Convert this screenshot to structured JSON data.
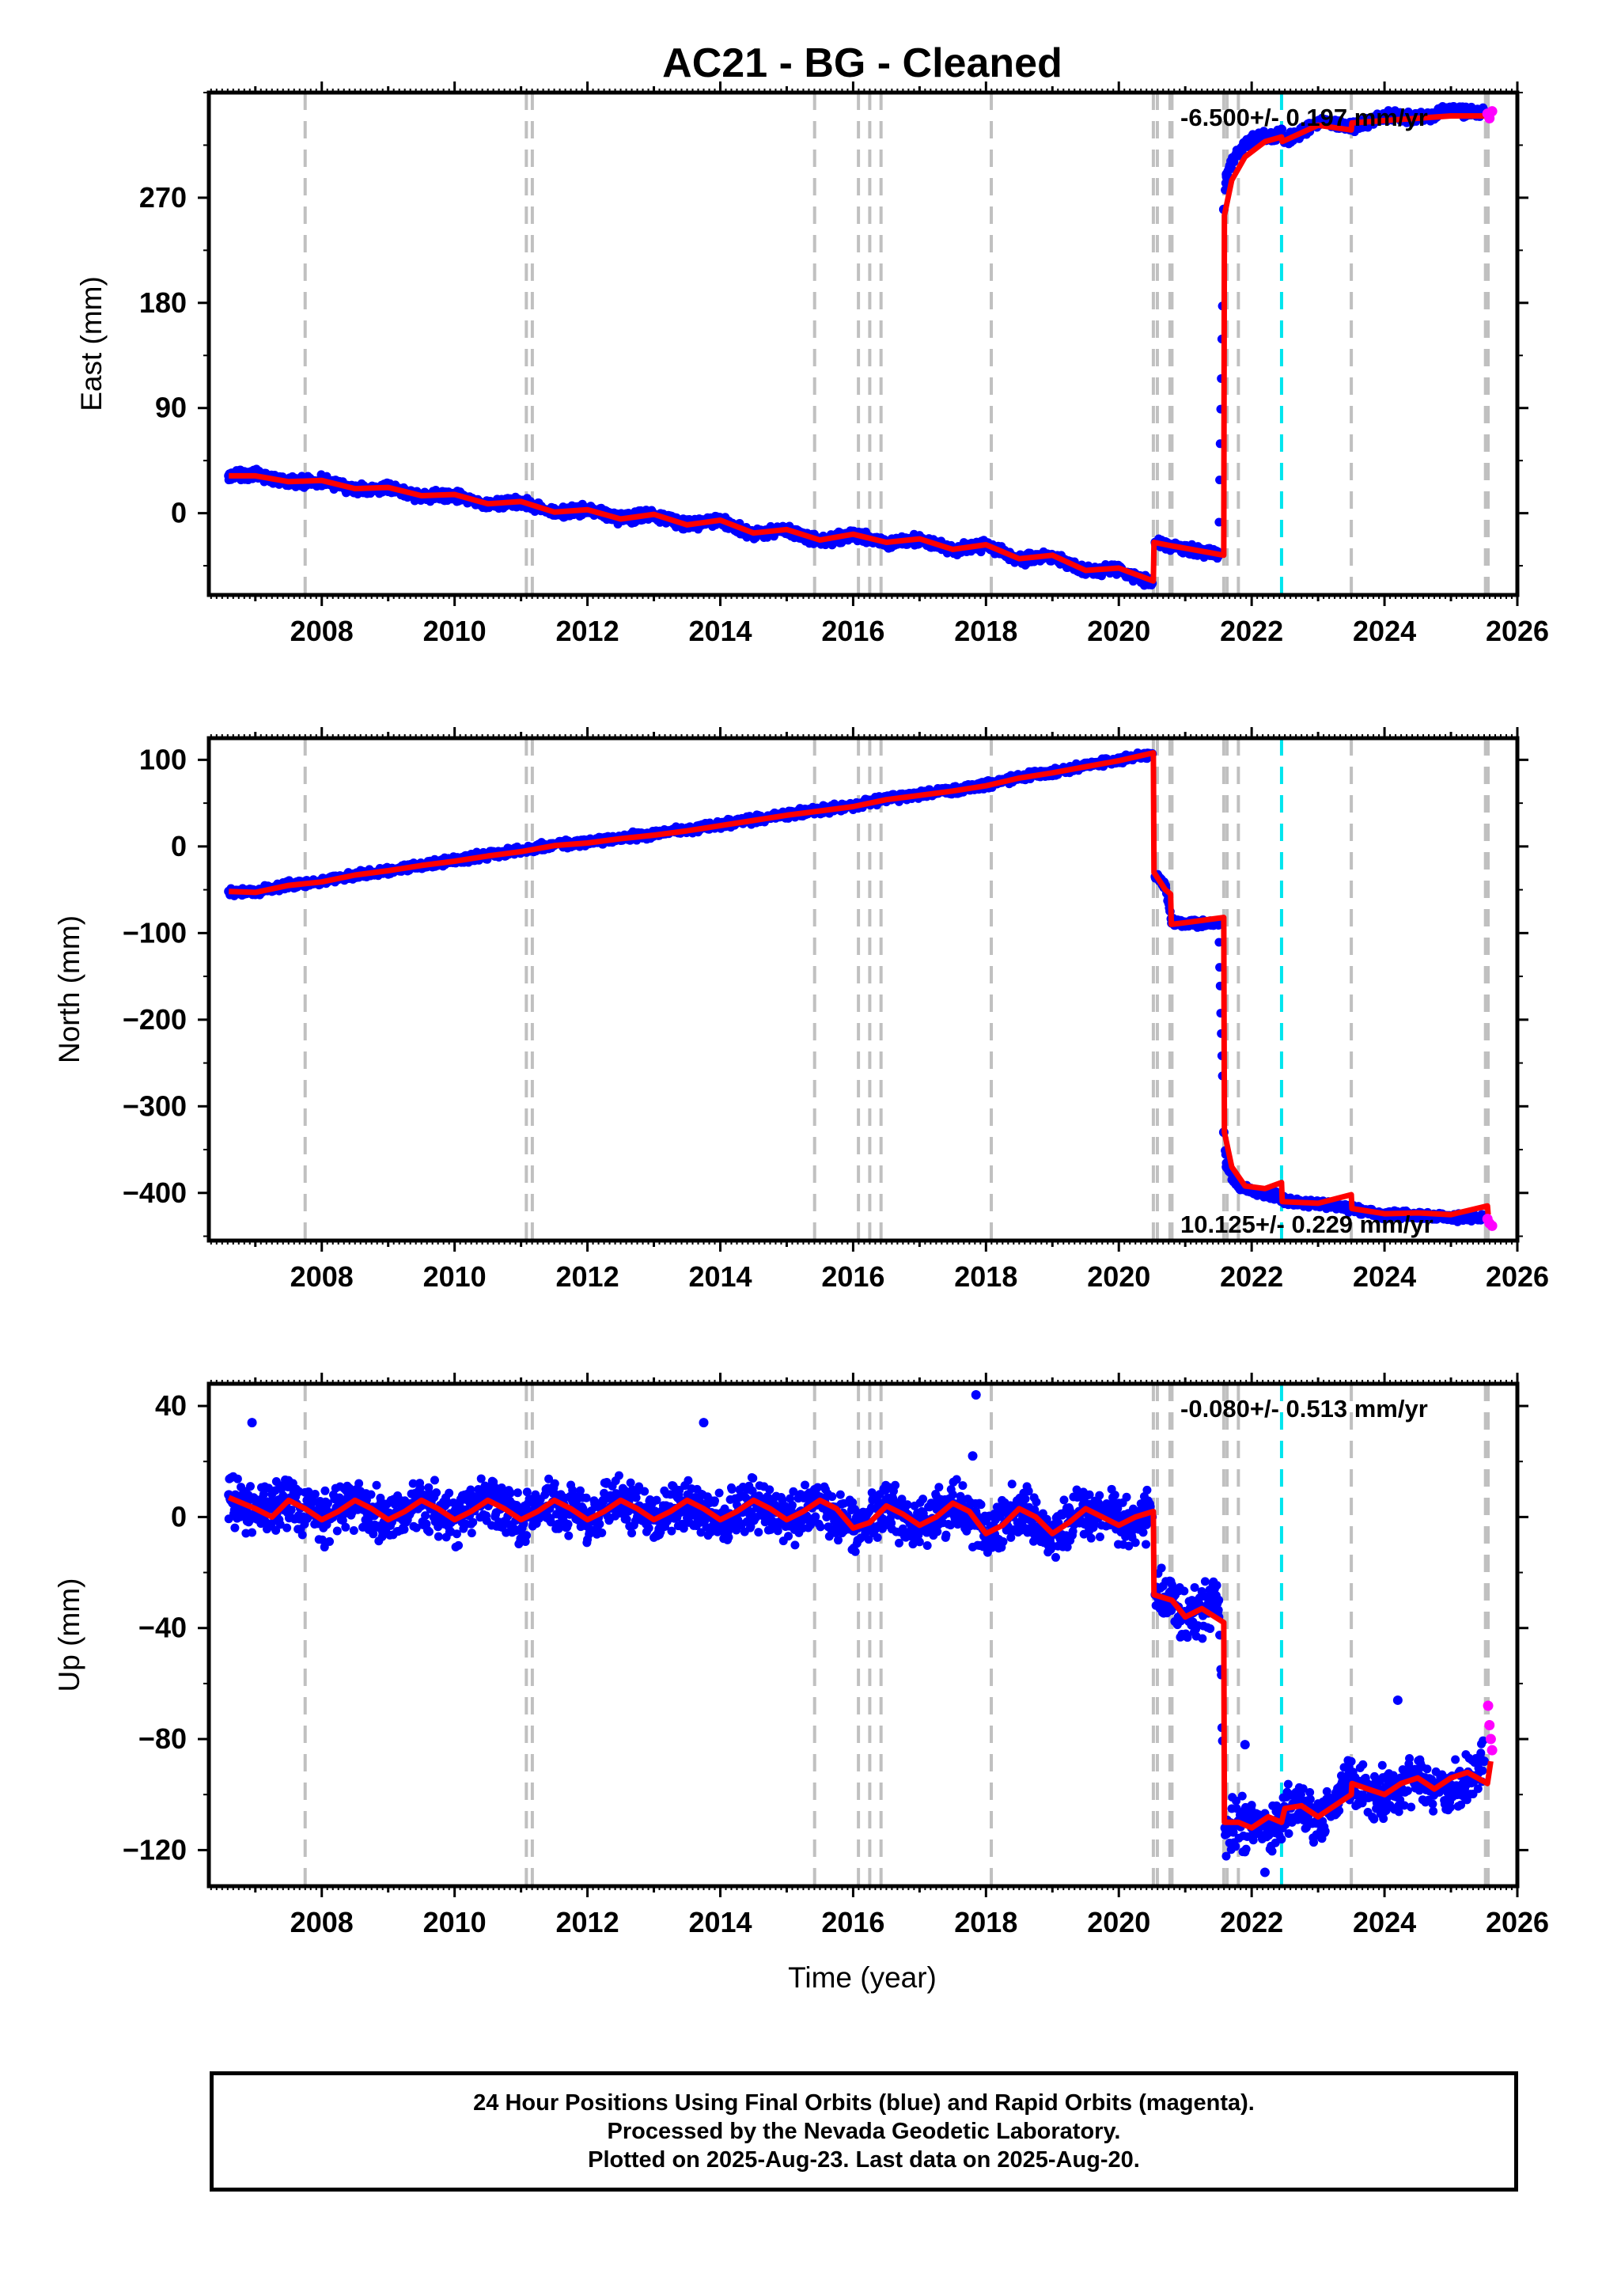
{
  "title": "AC21  - BG - Cleaned",
  "xlabel": "Time (year)",
  "colors": {
    "final_orbits": "#0000ff",
    "rapid_orbits": "#ff00ff",
    "model": "#ff0000",
    "event_line": "#c0c0c0",
    "highlight_line": "#00e5ee"
  },
  "chart_data": [
    {
      "type": "scatter",
      "component": "east",
      "ylabel": "East (mm)",
      "yticks": [
        0,
        90,
        180,
        270
      ],
      "ylim": [
        -70,
        360
      ],
      "xlim": [
        2006.3,
        2026.0
      ],
      "xticks": [
        2008,
        2010,
        2012,
        2014,
        2016,
        2018,
        2020,
        2022,
        2024,
        2026
      ],
      "rate_label": "-6.500+/- 0.197 mm/yr",
      "rate_position": "top-right",
      "event_lines": [
        2007.75,
        2011.08,
        2011.17,
        2015.42,
        2016.08,
        2016.25,
        2016.42,
        2018.08,
        2020.52,
        2020.58,
        2020.77,
        2020.8,
        2021.58,
        2021.63,
        2021.8,
        2023.5,
        2025.52,
        2025.56
      ],
      "highlight_lines": [
        2022.45
      ],
      "series": [
        {
          "name": "Final Orbits (blue)",
          "x": [
            2006.6,
            2007.0,
            2007.5,
            2008.0,
            2008.5,
            2009.0,
            2009.5,
            2010.0,
            2010.5,
            2011.0,
            2011.5,
            2012.0,
            2012.5,
            2013.0,
            2013.5,
            2014.0,
            2014.5,
            2015.0,
            2015.5,
            2016.0,
            2016.5,
            2017.0,
            2017.5,
            2018.0,
            2018.5,
            2019.0,
            2019.5,
            2020.0,
            2020.5,
            2020.55,
            2020.8,
            2021.0,
            2021.5,
            2021.58,
            2021.62,
            2021.8,
            2022.0,
            2022.45,
            2022.5,
            2023.0,
            2023.5,
            2024.0,
            2024.5,
            2025.0,
            2025.5
          ],
          "y": [
            32,
            33,
            26,
            28,
            20,
            22,
            14,
            15,
            7,
            10,
            0,
            3,
            -5,
            -1,
            -10,
            -6,
            -18,
            -14,
            -24,
            -18,
            -26,
            -22,
            -32,
            -27,
            -40,
            -37,
            -50,
            -48,
            -60,
            -25,
            -28,
            -30,
            -35,
            260,
            290,
            310,
            320,
            325,
            318,
            335,
            330,
            340,
            338,
            345,
            342
          ]
        },
        {
          "name": "Rapid Orbits (magenta)",
          "x": [
            2025.55,
            2025.58,
            2025.62
          ],
          "y": [
            342,
            338,
            344
          ]
        },
        {
          "name": "Model",
          "x": [
            2006.6,
            2007.0,
            2007.5,
            2008.0,
            2008.5,
            2009.0,
            2009.5,
            2010.0,
            2010.5,
            2011.0,
            2011.5,
            2012.0,
            2012.5,
            2013.0,
            2013.5,
            2014.0,
            2014.5,
            2015.0,
            2015.5,
            2016.0,
            2016.5,
            2017.0,
            2017.5,
            2018.0,
            2018.5,
            2019.0,
            2019.5,
            2020.0,
            2020.52,
            2020.53,
            2020.8,
            2021.0,
            2021.58,
            2021.59,
            2021.7,
            2021.9,
            2022.2,
            2022.45,
            2022.46,
            2023.0,
            2023.5,
            2023.51,
            2024.0,
            2024.5,
            2025.0,
            2025.6
          ],
          "y": [
            32,
            32,
            27,
            28,
            21,
            22,
            15,
            16,
            8,
            10,
            1,
            3,
            -5,
            -1,
            -10,
            -6,
            -17,
            -14,
            -23,
            -18,
            -25,
            -22,
            -31,
            -27,
            -39,
            -36,
            -49,
            -47,
            -58,
            -25,
            -28,
            -30,
            -36,
            255,
            285,
            305,
            318,
            322,
            318,
            332,
            328,
            334,
            336,
            338,
            340,
            340
          ]
        }
      ]
    },
    {
      "type": "scatter",
      "component": "north",
      "ylabel": "North (mm)",
      "yticks": [
        -400,
        -300,
        -200,
        -100,
        0,
        100
      ],
      "ylim": [
        -455,
        125
      ],
      "xlim": [
        2006.3,
        2026.0
      ],
      "xticks": [
        2008,
        2010,
        2012,
        2014,
        2016,
        2018,
        2020,
        2022,
        2024,
        2026
      ],
      "rate_label": "10.125+/- 0.229 mm/yr",
      "rate_position": "bottom-right",
      "event_lines": [
        2007.75,
        2011.08,
        2011.17,
        2015.42,
        2016.08,
        2016.25,
        2016.42,
        2018.08,
        2020.52,
        2020.58,
        2020.77,
        2020.8,
        2021.58,
        2021.63,
        2021.8,
        2023.5,
        2025.52,
        2025.56
      ],
      "highlight_lines": [
        2022.45
      ],
      "series": [
        {
          "name": "Final Orbits (blue)",
          "x": [
            2006.6,
            2007.0,
            2007.5,
            2008.0,
            2008.5,
            2009.0,
            2009.5,
            2010.0,
            2010.5,
            2011.0,
            2011.5,
            2012.0,
            2012.5,
            2013.0,
            2013.5,
            2014.0,
            2014.5,
            2015.0,
            2015.5,
            2016.0,
            2016.5,
            2017.0,
            2017.5,
            2018.0,
            2018.5,
            2019.0,
            2019.5,
            2020.0,
            2020.5,
            2020.55,
            2020.7,
            2020.8,
            2021.0,
            2021.5,
            2021.58,
            2021.62,
            2021.8,
            2022.0,
            2022.45,
            2022.5,
            2023.0,
            2023.5,
            2024.0,
            2024.5,
            2025.0,
            2025.5
          ],
          "y": [
            -52,
            -52,
            -44,
            -40,
            -33,
            -28,
            -22,
            -16,
            -10,
            -5,
            2,
            5,
            10,
            14,
            19,
            25,
            31,
            37,
            42,
            47,
            55,
            60,
            65,
            71,
            80,
            86,
            93,
            100,
            107,
            -35,
            -45,
            -88,
            -90,
            -88,
            -330,
            -370,
            -393,
            -398,
            -405,
            -410,
            -412,
            -418,
            -425,
            -426,
            -428,
            -428
          ]
        },
        {
          "name": "Rapid Orbits (magenta)",
          "x": [
            2025.55,
            2025.58,
            2025.62
          ],
          "y": [
            -430,
            -435,
            -438
          ]
        },
        {
          "name": "Model",
          "x": [
            2006.6,
            2007.0,
            2007.5,
            2008.0,
            2008.5,
            2009.0,
            2009.5,
            2010.0,
            2010.5,
            2011.0,
            2011.5,
            2012.0,
            2012.5,
            2013.0,
            2013.5,
            2014.0,
            2014.5,
            2015.0,
            2015.5,
            2016.0,
            2016.5,
            2017.0,
            2017.5,
            2018.0,
            2018.5,
            2019.0,
            2019.5,
            2020.0,
            2020.52,
            2020.53,
            2020.7,
            2020.78,
            2020.79,
            2021.0,
            2021.58,
            2021.59,
            2021.7,
            2021.9,
            2022.2,
            2022.45,
            2022.46,
            2023.0,
            2023.5,
            2023.51,
            2024.0,
            2024.5,
            2025.0,
            2025.55,
            2025.56
          ],
          "y": [
            -52,
            -53,
            -45,
            -41,
            -33,
            -28,
            -22,
            -17,
            -11,
            -6,
            1,
            4,
            9,
            13,
            18,
            24,
            30,
            36,
            41,
            46,
            54,
            59,
            64,
            70,
            79,
            85,
            92,
            99,
            108,
            -30,
            -50,
            -55,
            -90,
            -88,
            -82,
            -330,
            -370,
            -392,
            -395,
            -388,
            -410,
            -412,
            -402,
            -418,
            -424,
            -423,
            -425,
            -415,
            -425
          ]
        }
      ]
    },
    {
      "type": "scatter",
      "component": "up",
      "ylabel": "Up (mm)",
      "yticks": [
        -120,
        -80,
        -40,
        0,
        40
      ],
      "ylim": [
        -133,
        48
      ],
      "xlim": [
        2006.3,
        2026.0
      ],
      "xticks": [
        2008,
        2010,
        2012,
        2014,
        2016,
        2018,
        2020,
        2022,
        2024,
        2026
      ],
      "rate_label": "-0.080+/- 0.513 mm/yr",
      "rate_position": "top-right",
      "event_lines": [
        2007.75,
        2011.08,
        2011.17,
        2015.42,
        2016.08,
        2016.25,
        2016.42,
        2018.08,
        2020.52,
        2020.58,
        2020.77,
        2020.8,
        2021.58,
        2021.63,
        2021.8,
        2023.5,
        2025.52,
        2025.56
      ],
      "highlight_lines": [
        2022.45
      ],
      "series": [
        {
          "name": "Final Orbits (blue)",
          "x": [
            2006.6,
            2007.0,
            2007.5,
            2008.0,
            2008.5,
            2009.0,
            2009.5,
            2010.0,
            2010.5,
            2011.0,
            2011.5,
            2012.0,
            2012.5,
            2013.0,
            2013.5,
            2014.0,
            2014.5,
            2015.0,
            2015.5,
            2016.0,
            2016.5,
            2017.0,
            2017.5,
            2018.0,
            2018.5,
            2019.0,
            2019.5,
            2020.0,
            2020.5,
            2020.55,
            2020.8,
            2021.0,
            2021.5,
            2021.6,
            2021.8,
            2022.0,
            2022.45,
            2022.5,
            2023.0,
            2023.5,
            2024.0,
            2024.5,
            2025.0,
            2025.5
          ],
          "y": [
            8,
            0,
            6,
            -1,
            5,
            -2,
            6,
            -1,
            7,
            -1,
            5,
            -1,
            6,
            -1,
            5,
            -1,
            6,
            -2,
            5,
            -4,
            4,
            -3,
            5,
            -6,
            3,
            -6,
            3,
            -2,
            0,
            -28,
            -30,
            -36,
            -30,
            -112,
            -110,
            -112,
            -110,
            -105,
            -108,
            -96,
            -100,
            -94,
            -98,
            -88
          ]
        },
        {
          "name": "Rapid Orbits (magenta)",
          "x": [
            2025.56,
            2025.58,
            2025.6,
            2025.62
          ],
          "y": [
            -68,
            -75,
            -80,
            -84
          ]
        },
        {
          "name": "Model",
          "x": [
            2006.6,
            2007.0,
            2007.25,
            2007.5,
            2007.75,
            2008.0,
            2008.25,
            2008.5,
            2008.75,
            2009.0,
            2009.25,
            2009.5,
            2009.75,
            2010.0,
            2010.25,
            2010.5,
            2010.75,
            2011.0,
            2011.25,
            2011.5,
            2011.75,
            2012.0,
            2012.25,
            2012.5,
            2012.75,
            2013.0,
            2013.25,
            2013.5,
            2013.75,
            2014.0,
            2014.25,
            2014.5,
            2014.75,
            2015.0,
            2015.25,
            2015.5,
            2015.75,
            2016.0,
            2016.25,
            2016.5,
            2016.75,
            2017.0,
            2017.25,
            2017.5,
            2017.75,
            2018.0,
            2018.25,
            2018.5,
            2018.75,
            2019.0,
            2019.25,
            2019.5,
            2019.75,
            2020.0,
            2020.25,
            2020.52,
            2020.53,
            2020.8,
            2021.0,
            2021.25,
            2021.58,
            2021.59,
            2021.8,
            2022.0,
            2022.25,
            2022.45,
            2022.5,
            2022.75,
            2023.0,
            2023.25,
            2023.5,
            2023.51,
            2023.75,
            2024.0,
            2024.25,
            2024.5,
            2024.75,
            2025.0,
            2025.25,
            2025.55,
            2025.6
          ],
          "y": [
            7,
            3,
            0,
            6,
            3,
            -1,
            2,
            6,
            3,
            -1,
            2,
            6,
            3,
            -1,
            2,
            6,
            3,
            -1,
            2,
            6,
            3,
            -1,
            2,
            6,
            3,
            -1,
            2,
            6,
            3,
            -1,
            2,
            6,
            3,
            -1,
            2,
            6,
            3,
            -4,
            -2,
            4,
            1,
            -3,
            0,
            5,
            2,
            -6,
            -3,
            3,
            0,
            -6,
            -2,
            3,
            0,
            -3,
            0,
            2,
            -28,
            -30,
            -36,
            -33,
            -38,
            -110,
            -110,
            -112,
            -108,
            -110,
            -105,
            -104,
            -108,
            -104,
            -100,
            -96,
            -98,
            -100,
            -96,
            -94,
            -98,
            -94,
            -92,
            -96,
            -88
          ]
        }
      ]
    }
  ],
  "footer": {
    "line1": "24 Hour Positions Using Final Orbits (blue) and Rapid Orbits (magenta).",
    "line2": "Processed by the Nevada Geodetic Laboratory.",
    "line3": "Plotted on 2025-Aug-23. Last data on 2025-Aug-20."
  }
}
